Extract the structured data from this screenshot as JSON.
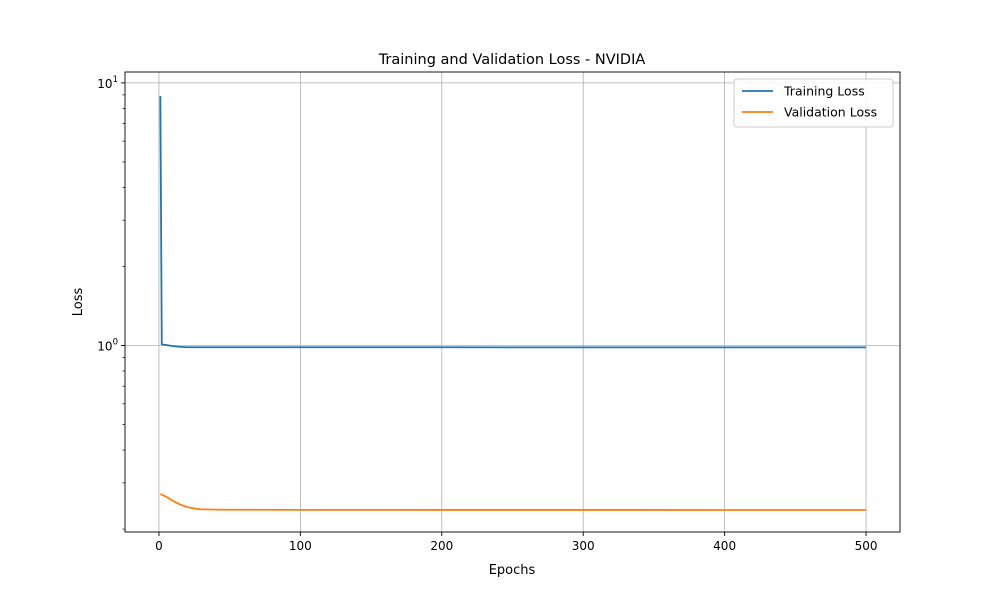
{
  "chart_data": {
    "type": "line",
    "title": "Training and Validation Loss - NVIDIA",
    "xlabel": "Epochs",
    "ylabel": "Loss",
    "xlim": [
      -24,
      524
    ],
    "ylim": [
      0.195,
      11
    ],
    "yscale": "log",
    "grid": true,
    "legend_position": "top-right",
    "x_ticks": [
      {
        "value": 0,
        "label": "0"
      },
      {
        "value": 100,
        "label": "100"
      },
      {
        "value": 200,
        "label": "200"
      },
      {
        "value": 300,
        "label": "300"
      },
      {
        "value": 400,
        "label": "400"
      },
      {
        "value": 500,
        "label": "500"
      }
    ],
    "y_major_ticks": [
      {
        "value": 1,
        "base": "10",
        "exp": "0"
      },
      {
        "value": 10,
        "base": "10",
        "exp": "1"
      }
    ],
    "y_minor_ticks": [
      0.2,
      0.3,
      0.4,
      0.5,
      0.6,
      0.7,
      0.8,
      0.9,
      2,
      3,
      4,
      5,
      6,
      7,
      8,
      9
    ],
    "series": [
      {
        "name": "Training Loss",
        "color": "#1f77b4",
        "points": [
          [
            1,
            8.9
          ],
          [
            2,
            1.01
          ],
          [
            5,
            1.005
          ],
          [
            10,
            0.995
          ],
          [
            15,
            0.988
          ],
          [
            20,
            0.985
          ],
          [
            30,
            0.985
          ],
          [
            50,
            0.985
          ],
          [
            100,
            0.985
          ],
          [
            150,
            0.985
          ],
          [
            200,
            0.985
          ],
          [
            250,
            0.984
          ],
          [
            300,
            0.984
          ],
          [
            350,
            0.984
          ],
          [
            400,
            0.984
          ],
          [
            450,
            0.984
          ],
          [
            500,
            0.984
          ]
        ]
      },
      {
        "name": "Validation Loss",
        "color": "#ff7f0e",
        "points": [
          [
            1,
            0.272
          ],
          [
            5,
            0.266
          ],
          [
            10,
            0.256
          ],
          [
            15,
            0.248
          ],
          [
            20,
            0.2425
          ],
          [
            25,
            0.2395
          ],
          [
            30,
            0.238
          ],
          [
            40,
            0.2372
          ],
          [
            50,
            0.237
          ],
          [
            100,
            0.2368
          ],
          [
            200,
            0.2366
          ],
          [
            300,
            0.2366
          ],
          [
            400,
            0.2365
          ],
          [
            500,
            0.2365
          ]
        ]
      }
    ]
  }
}
